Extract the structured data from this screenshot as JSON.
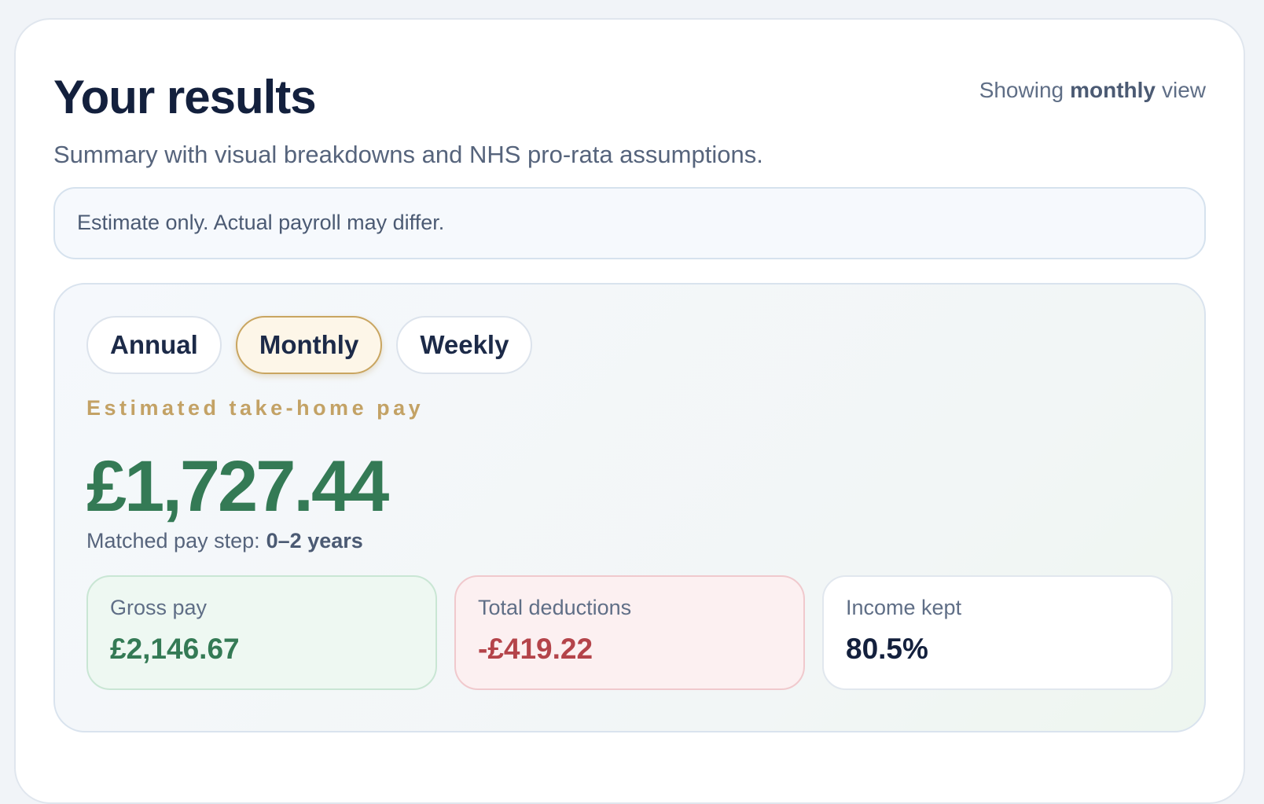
{
  "header": {
    "title": "Your results",
    "subtitle": "Summary with visual breakdowns and NHS pro-rata assumptions.",
    "view_indicator": {
      "prefix": "Showing",
      "mode": "monthly",
      "suffix": "view"
    }
  },
  "notice": "Estimate only. Actual payroll may differ.",
  "tabs": [
    {
      "label": "Annual",
      "active": false
    },
    {
      "label": "Monthly",
      "active": true
    },
    {
      "label": "Weekly",
      "active": false
    }
  ],
  "result": {
    "label": "Estimated take-home pay",
    "amount": "£1,727.44",
    "pay_step": {
      "label": "Matched pay step:",
      "value": "0–2 years"
    }
  },
  "stats": [
    {
      "label": "Gross pay",
      "value": "£2,146.67",
      "tone": "positive"
    },
    {
      "label": "Total deductions",
      "value": "-£419.22",
      "tone": "negative"
    },
    {
      "label": "Income kept",
      "value": "80.5%",
      "tone": "neutral"
    }
  ]
}
